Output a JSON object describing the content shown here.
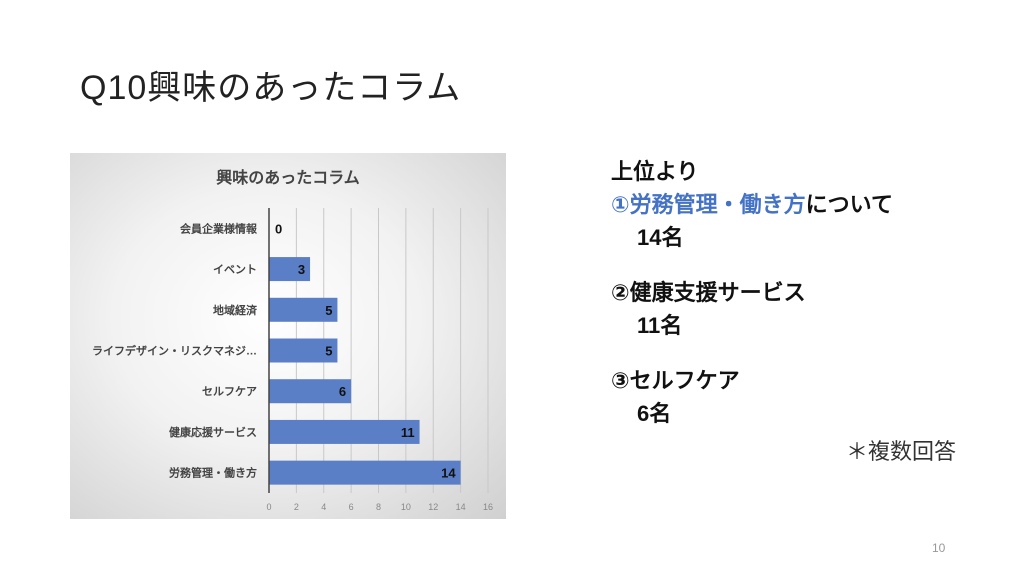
{
  "slide": {
    "title": "Q10興味のあったコラム",
    "page_number": "10"
  },
  "summary": {
    "heading": "上位より",
    "items": [
      {
        "marker": "①",
        "label_highlight": "労務管理・働き方",
        "label_rest": "について",
        "count": "14名"
      },
      {
        "marker": "②",
        "label_highlight": "",
        "label_rest": "健康支援サービス",
        "count": "11名"
      },
      {
        "marker": "③",
        "label_highlight": "",
        "label_rest": "セルフケア",
        "count": "6名"
      }
    ],
    "note": "＊複数回答",
    "highlight_color": "#4472c4"
  },
  "chart_data": {
    "type": "bar",
    "orientation": "horizontal",
    "title": "興味のあったコラム",
    "categories": [
      "会員企業様情報",
      "イベント",
      "地域経済",
      "ライフデザイン・リスクマネジ…",
      "セルフケア",
      "健康応援サービス",
      "労務管理・働き方"
    ],
    "values": [
      0,
      3,
      5,
      5,
      6,
      11,
      14
    ],
    "xlim": [
      0,
      16
    ],
    "xticks": [
      0,
      2,
      4,
      6,
      8,
      10,
      12,
      14,
      16
    ],
    "xlabel": "",
    "ylabel": "",
    "grid": "vertical",
    "data_labels": true,
    "bar_color": "#5b7fc7",
    "legend": "none"
  }
}
